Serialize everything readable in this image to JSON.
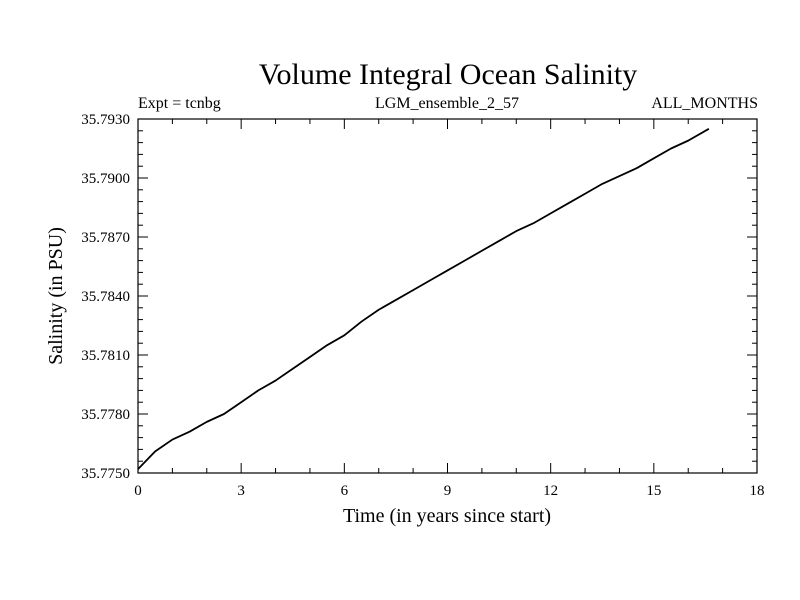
{
  "chart_data": {
    "type": "line",
    "title": "Volume Integral Ocean Salinity",
    "subtitle_left": "Expt = tcnbg",
    "subtitle_center": "LGM_ensemble_2_57",
    "subtitle_right": "ALL_MONTHS",
    "xlabel": "Time (in years since start)",
    "ylabel": "Salinity (in PSU)",
    "xlim": [
      0,
      18
    ],
    "ylim": [
      35.775,
      35.793
    ],
    "xticks": [
      0,
      3,
      6,
      9,
      12,
      15,
      18
    ],
    "xtick_labels": [
      "0",
      "3",
      "6",
      "9",
      "12",
      "15",
      "18"
    ],
    "yticks": [
      35.775,
      35.778,
      35.781,
      35.784,
      35.787,
      35.79,
      35.793
    ],
    "ytick_labels": [
      "35.7750",
      "35.7780",
      "35.7810",
      "35.7840",
      "35.7870",
      "35.7900",
      "35.7930"
    ],
    "grid": false,
    "series": [
      {
        "name": "salinity",
        "color": "#000000",
        "x": [
          0,
          0.5,
          1,
          1.5,
          2,
          2.5,
          3,
          3.5,
          4,
          4.5,
          5,
          5.5,
          6,
          6.5,
          7,
          7.5,
          8,
          8.5,
          9,
          9.5,
          10,
          10.5,
          11,
          11.5,
          12,
          12.5,
          13,
          13.5,
          14,
          14.5,
          15,
          15.5,
          16,
          16.6
        ],
        "y": [
          35.7752,
          35.7761,
          35.7767,
          35.7771,
          35.7776,
          35.778,
          35.7786,
          35.7792,
          35.7797,
          35.7803,
          35.7809,
          35.7815,
          35.782,
          35.7827,
          35.7833,
          35.7838,
          35.7843,
          35.7848,
          35.7853,
          35.7858,
          35.7863,
          35.7868,
          35.7873,
          35.7877,
          35.7882,
          35.7887,
          35.7892,
          35.7897,
          35.7901,
          35.7905,
          35.791,
          35.7915,
          35.7919,
          35.7925
        ]
      }
    ]
  }
}
